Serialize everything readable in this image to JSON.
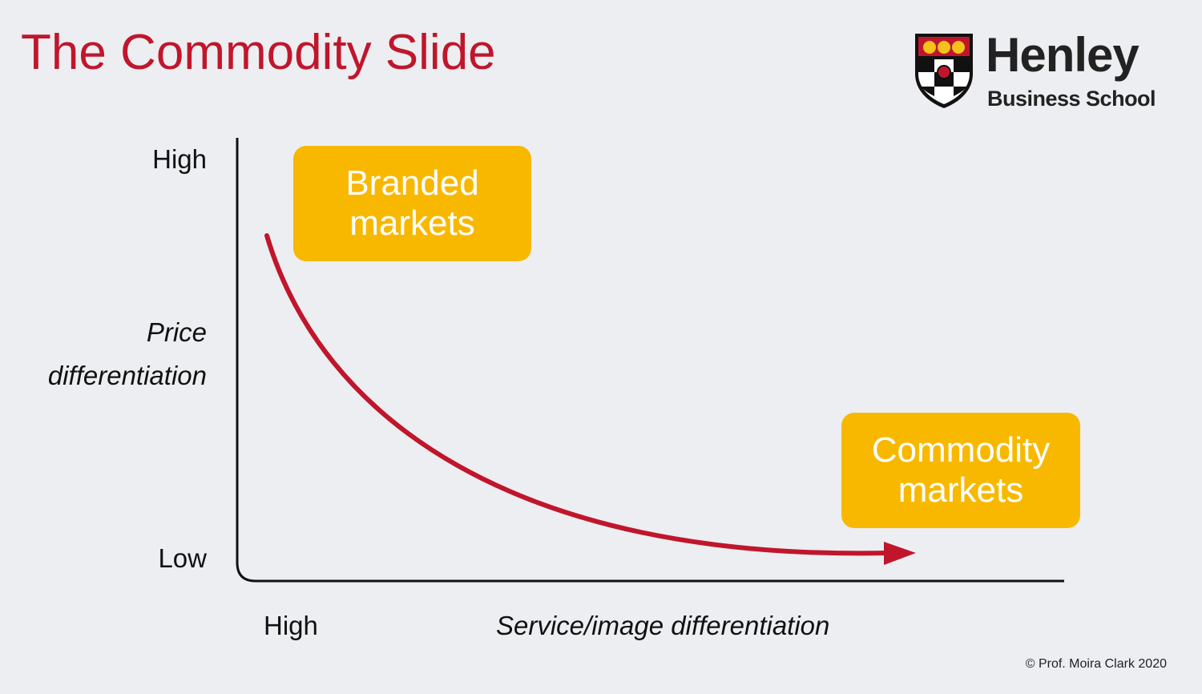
{
  "title": "The Commodity Slide",
  "logo": {
    "name": "Henley",
    "subtitle": "Business School"
  },
  "y_axis": {
    "high_label": "High",
    "low_label": "Low",
    "title_line1": "Price",
    "title_line2": "differentiation"
  },
  "x_axis": {
    "high_label": "High",
    "title": "Service/image differentiation"
  },
  "boxes": {
    "branded_line1": "Branded",
    "branded_line2": "markets",
    "commodity_line1": "Commodity",
    "commodity_line2": "markets"
  },
  "copyright": "© Prof. Moira Clark 2020",
  "colors": {
    "accent_red": "#c0162c",
    "box_yellow": "#f8b800",
    "background": "#eceef1"
  }
}
